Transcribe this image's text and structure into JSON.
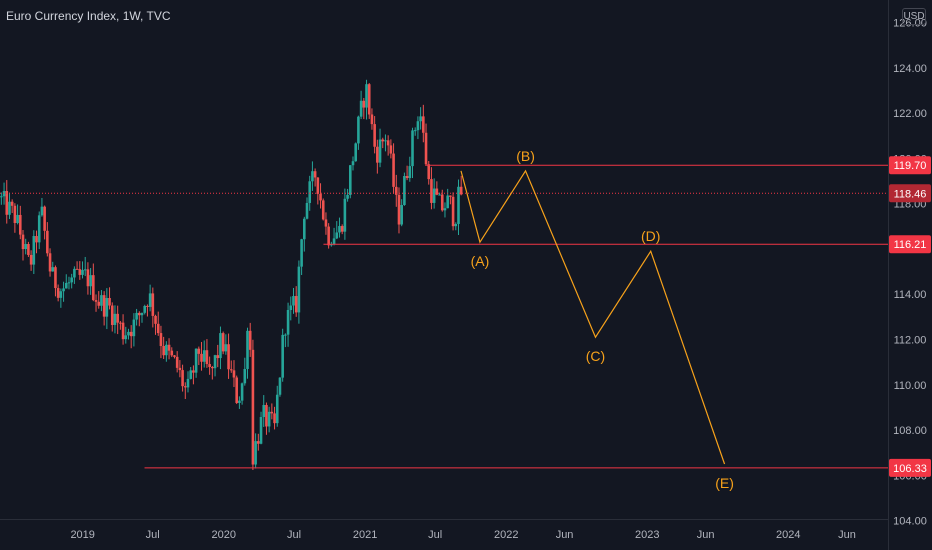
{
  "header": {
    "title": "Euro Currency Index, 1W, TVC",
    "currency": "USD"
  },
  "chart_data": {
    "type": "candlestick",
    "title": "Euro Currency Index, 1W, TVC",
    "ylabel": "USD",
    "ylim": [
      102.7,
      127.0
    ],
    "xlim": [
      "2018-06-01",
      "2024-09-15"
    ],
    "y_ticks": [
      "126.00",
      "124.00",
      "122.00",
      "120.00",
      "118.00",
      "116.00",
      "114.00",
      "112.00",
      "110.00",
      "108.00",
      "106.00",
      "104.00"
    ],
    "x_ticks": [
      {
        "label": "2019",
        "date": "2019-01-01"
      },
      {
        "label": "Jul",
        "date": "2019-07-01"
      },
      {
        "label": "2020",
        "date": "2020-01-01"
      },
      {
        "label": "Jul",
        "date": "2020-07-01"
      },
      {
        "label": "2021",
        "date": "2021-01-01"
      },
      {
        "label": "Jul",
        "date": "2021-07-01"
      },
      {
        "label": "2022",
        "date": "2022-01-01"
      },
      {
        "label": "Jun",
        "date": "2022-06-01"
      },
      {
        "label": "2023",
        "date": "2023-01-01"
      },
      {
        "label": "Jun",
        "date": "2023-06-01"
      },
      {
        "label": "2024",
        "date": "2024-01-01"
      },
      {
        "label": "Jun",
        "date": "2024-06-01"
      }
    ],
    "price_path": [
      [
        "2018-06-01",
        118.3
      ],
      [
        "2018-07-15",
        117.4
      ],
      [
        "2018-08-20",
        115.2
      ],
      [
        "2018-09-20",
        117.6
      ],
      [
        "2018-10-15",
        114.8
      ],
      [
        "2018-11-10",
        114.2
      ],
      [
        "2018-12-10",
        114.6
      ],
      [
        "2019-01-15",
        114.8
      ],
      [
        "2019-02-15",
        113.7
      ],
      [
        "2019-03-15",
        113.4
      ],
      [
        "2019-04-20",
        112.3
      ],
      [
        "2019-05-20",
        112.7
      ],
      [
        "2019-06-25",
        114.0
      ],
      [
        "2019-08-01",
        111.6
      ],
      [
        "2019-09-05",
        110.8
      ],
      [
        "2019-10-01",
        109.6
      ],
      [
        "2019-11-01",
        111.5
      ],
      [
        "2019-12-01",
        110.4
      ],
      [
        "2019-12-31",
        112.0
      ],
      [
        "2020-02-10",
        109.3
      ],
      [
        "2020-03-01",
        110.7
      ],
      [
        "2020-03-09",
        114.2
      ],
      [
        "2020-03-20",
        106.9
      ],
      [
        "2020-04-15",
        108.6
      ],
      [
        "2020-05-15",
        108.1
      ],
      [
        "2020-06-10",
        112.7
      ],
      [
        "2020-07-10",
        113.6
      ],
      [
        "2020-07-30",
        117.7
      ],
      [
        "2020-08-30",
        119.4
      ],
      [
        "2020-09-28",
        116.6
      ],
      [
        "2020-11-01",
        116.8
      ],
      [
        "2020-12-01",
        119.8
      ],
      [
        "2021-01-06",
        123.2
      ],
      [
        "2021-02-01",
        120.2
      ],
      [
        "2021-03-01",
        121.1
      ],
      [
        "2021-03-31",
        117.3
      ],
      [
        "2021-05-01",
        120.3
      ],
      [
        "2021-05-25",
        122.3
      ],
      [
        "2021-06-20",
        118.7
      ],
      [
        "2021-07-20",
        117.8
      ],
      [
        "2021-08-10",
        118.1
      ],
      [
        "2021-08-24",
        117.3
      ],
      [
        "2021-09-06",
        118.5
      ]
    ],
    "support_resistance": [
      {
        "label": "119.70",
        "value": 119.7,
        "from": "2021-06-05",
        "color": "#f23645"
      },
      {
        "label": "118.46",
        "value": 118.46,
        "from": "2018-06-01",
        "color": "#f23645",
        "dotted": true
      },
      {
        "label": "116.21",
        "value": 116.21,
        "from": "2020-09-15",
        "color": "#f23645"
      },
      {
        "label": "106.33",
        "value": 106.33,
        "from": "2019-06-10",
        "color": "#f23645"
      }
    ],
    "wave_projection": [
      {
        "date": "2021-09-06",
        "value": 119.45,
        "label": ""
      },
      {
        "date": "2021-10-25",
        "value": 116.3,
        "label": "(A)"
      },
      {
        "date": "2022-02-20",
        "value": 119.45,
        "label": "(B)"
      },
      {
        "date": "2022-08-20",
        "value": 112.1,
        "label": "(C)"
      },
      {
        "date": "2023-01-10",
        "value": 115.9,
        "label": "(D)"
      },
      {
        "date": "2023-07-20",
        "value": 106.5,
        "label": "(E)"
      }
    ],
    "colors": {
      "up": "#26a69a",
      "down": "#ef5350",
      "line": "#f23645",
      "projection": "#f7a21b",
      "axis_text": "#b2b5be"
    }
  }
}
